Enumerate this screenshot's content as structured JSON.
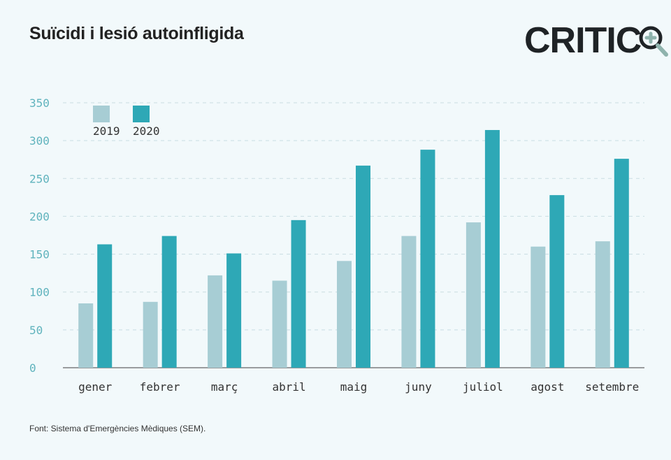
{
  "header": {
    "title": "Suïcidi i lesió autoinfligida",
    "logo_text": "CRITIC"
  },
  "footer": {
    "source": "Font: Sistema d'Emergències Mèdiques (SEM)."
  },
  "colors": {
    "series_2019": "#a7cdd4",
    "series_2020": "#2ea8b6",
    "grid": "#c9dde2",
    "tick": "#5fb3bd",
    "logo_accent": "#8fb3ad"
  },
  "chart_data": {
    "type": "bar",
    "title": "Suïcidi i lesió autoinfligida",
    "xlabel": "",
    "ylabel": "",
    "ylim": [
      0,
      350
    ],
    "yticks": [
      0,
      50,
      100,
      150,
      200,
      250,
      300,
      350
    ],
    "grid": true,
    "legend_position": "top-left",
    "categories": [
      "gener",
      "febrer",
      "març",
      "abril",
      "maig",
      "juny",
      "juliol",
      "agost",
      "setembre"
    ],
    "series": [
      {
        "name": "2019",
        "values": [
          85,
          87,
          122,
          115,
          141,
          174,
          192,
          160,
          167
        ]
      },
      {
        "name": "2020",
        "values": [
          163,
          174,
          151,
          195,
          267,
          288,
          314,
          228,
          276
        ]
      }
    ]
  }
}
